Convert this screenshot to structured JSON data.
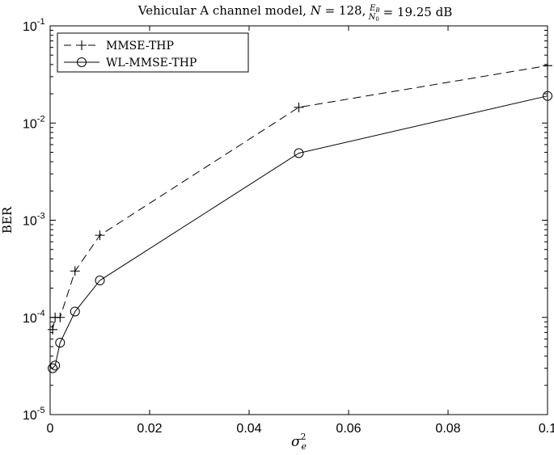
{
  "chart_data": {
    "type": "line",
    "title": {
      "prefix": "Vehicular A channel model, ",
      "n_label": "N",
      "n_value": " = 128, ",
      "frac_num": "E",
      "frac_num_sub": "B",
      "frac_den": "N",
      "frac_den_sub": "0",
      "suffix": " = 19.25 dB"
    },
    "xlabel": {
      "base": "σ",
      "sub": "e",
      "sup": "2"
    },
    "ylabel": "BER",
    "xlim": [
      0,
      0.1
    ],
    "ylim": [
      1e-05,
      0.1
    ],
    "yscale": "log",
    "grid": false,
    "legend_position": "top-left",
    "x_ticks": [
      {
        "value": 0,
        "label": "0"
      },
      {
        "value": 0.02,
        "label": "0.02"
      },
      {
        "value": 0.04,
        "label": "0.04"
      },
      {
        "value": 0.06,
        "label": "0.06"
      },
      {
        "value": 0.08,
        "label": "0.08"
      },
      {
        "value": 0.1,
        "label": "0.1"
      }
    ],
    "y_ticks": [
      {
        "value": 1e-05,
        "base": "10",
        "exp": "-5"
      },
      {
        "value": 0.0001,
        "base": "10",
        "exp": "-4"
      },
      {
        "value": 0.001,
        "base": "10",
        "exp": "-3"
      },
      {
        "value": 0.01,
        "base": "10",
        "exp": "-2"
      },
      {
        "value": 0.1,
        "base": "10",
        "exp": "-1"
      }
    ],
    "series": [
      {
        "name": "MMSE-THP",
        "marker": "plus",
        "line": "dashed",
        "color": "#000000",
        "x": [
          0.0005,
          0.001,
          0.002,
          0.005,
          0.01,
          0.05,
          0.1
        ],
        "y": [
          7.5e-05,
          0.0001,
          0.0001,
          0.0003,
          0.0007,
          0.0145,
          0.039
        ]
      },
      {
        "name": "WL-MMSE-THP",
        "marker": "circle",
        "line": "solid",
        "color": "#000000",
        "x": [
          0.0005,
          0.001,
          0.002,
          0.005,
          0.01,
          0.05,
          0.1
        ],
        "y": [
          3e-05,
          3.2e-05,
          5.5e-05,
          0.000115,
          0.00024,
          0.0049,
          0.019
        ]
      }
    ]
  }
}
